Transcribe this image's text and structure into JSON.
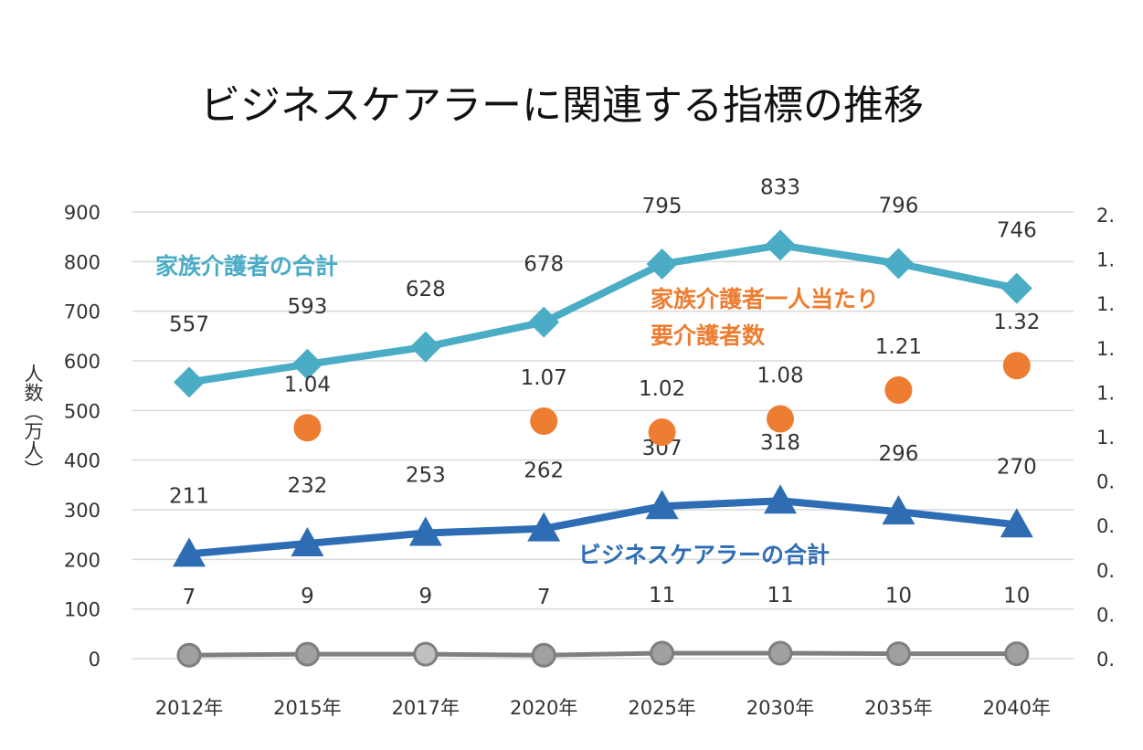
{
  "chart_data": {
    "type": "line",
    "title": "ビジネスケアラーに関連する指標の推移",
    "ylabel": "人数（万人）",
    "categories": [
      "2012年",
      "2015年",
      "2017年",
      "2020年",
      "2025年",
      "2030年",
      "2035年",
      "2040年"
    ],
    "ylim": [
      0,
      900
    ],
    "y_ticks": [
      "0",
      "100",
      "200",
      "300",
      "400",
      "500",
      "600",
      "700",
      "800",
      "900"
    ],
    "y2lim": [
      0,
      2.0
    ],
    "y2_ticks": [
      "0.",
      "0.",
      "0.",
      "0.",
      "0.",
      "1.",
      "1.",
      "1.",
      "1.",
      "1.",
      "2."
    ],
    "grid": true,
    "series": [
      {
        "name": "家族介護者の合計",
        "axis": "left",
        "marker": "diamond",
        "color": "#4bacc6",
        "values": [
          557,
          593,
          628,
          678,
          795,
          833,
          796,
          746
        ],
        "labels": [
          "557",
          "593",
          "628",
          "678",
          "795",
          "833",
          "796",
          "746"
        ]
      },
      {
        "name": "ビジネスケアラーの合計",
        "axis": "left",
        "marker": "triangle",
        "color": "#2e6db4",
        "values": [
          211,
          232,
          253,
          262,
          307,
          318,
          296,
          270
        ],
        "labels": [
          "211",
          "232",
          "253",
          "262",
          "307",
          "318",
          "296",
          "270"
        ]
      },
      {
        "name": "",
        "axis": "left",
        "marker": "circle",
        "color": "#a0a0a0",
        "values": [
          7,
          9,
          9,
          7,
          11,
          11,
          10,
          10
        ],
        "labels": [
          "7",
          "9",
          "9",
          "7",
          "11",
          "11",
          "10",
          "10"
        ]
      },
      {
        "name": "家族介護者一人当たり要介護者数",
        "name_lines": [
          "家族介護者一人当たり",
          "要介護者数"
        ],
        "axis": "right",
        "marker": "circle",
        "color": "#ed7d31",
        "line": false,
        "values": [
          null,
          1.04,
          null,
          1.07,
          1.02,
          1.08,
          1.21,
          1.32
        ],
        "labels": [
          "",
          "1.04",
          "",
          "1.07",
          "1.02",
          "1.08",
          "1.21",
          "1.32"
        ]
      }
    ]
  }
}
